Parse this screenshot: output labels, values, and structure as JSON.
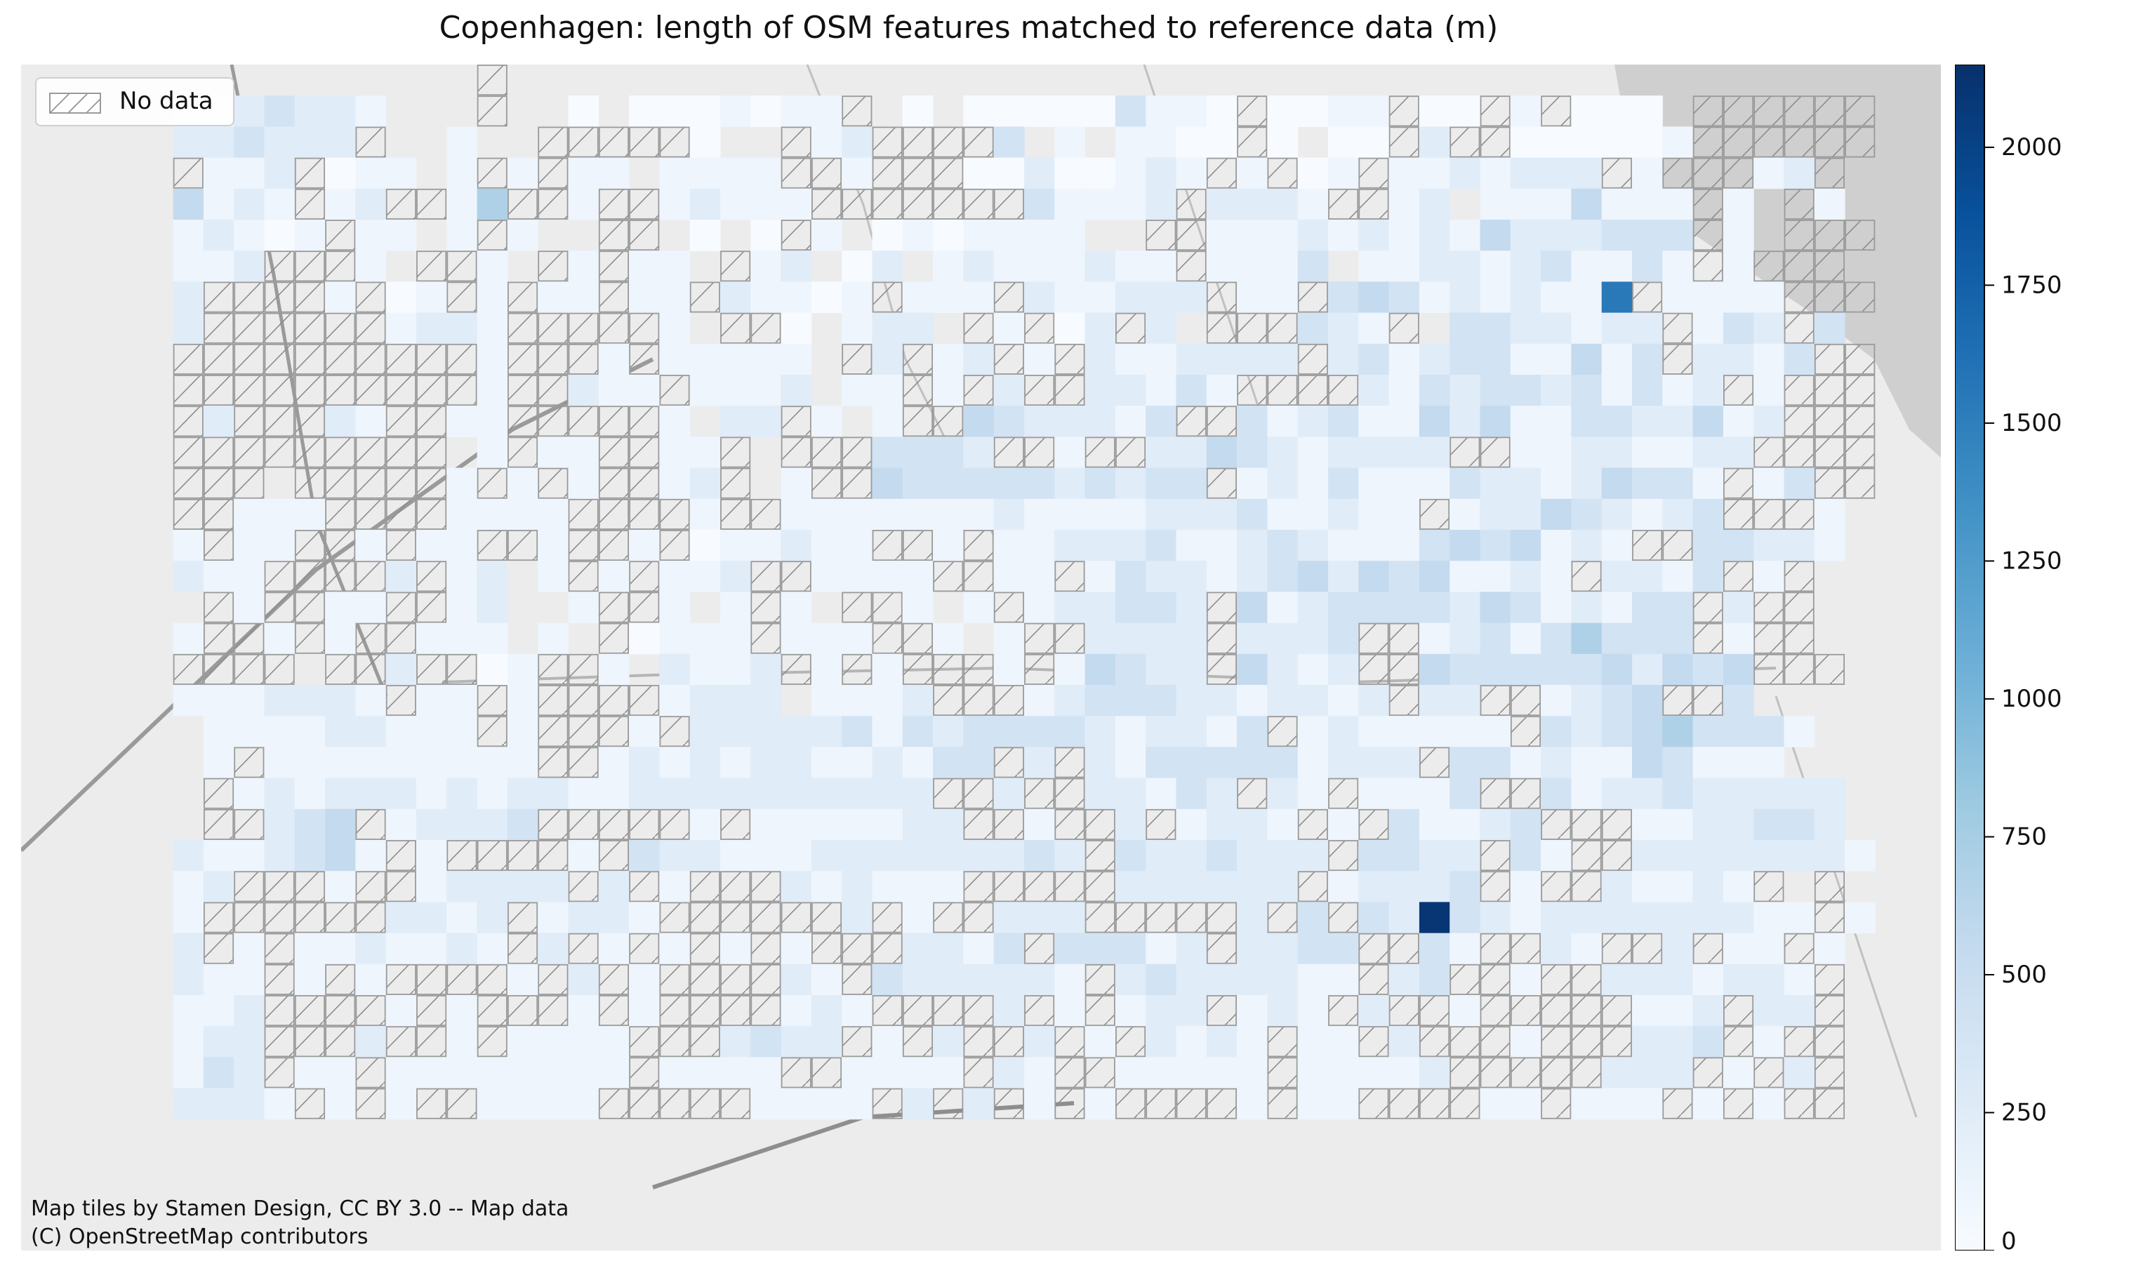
{
  "chart_data": {
    "type": "heatmap",
    "title": "Copenhagen: length of OSM features matched to reference data (m)",
    "value_unit": "m",
    "colormap": "Blues",
    "vmin": 0,
    "vmax": 2150,
    "colorbar_ticks": [
      0,
      250,
      500,
      750,
      1000,
      1250,
      1500,
      1750,
      2000
    ],
    "legend": {
      "label": "No data",
      "placement": "upper-left",
      "pattern": "hatch"
    },
    "attribution": [
      "Map tiles by Stamen Design, CC BY 3.0 -- Map data",
      "(C) OpenStreetMap contributors"
    ],
    "grid": {
      "n_cols": 58,
      "n_rows": 36,
      "legend_codes": {
        ".": "outside-grid",
        "X": "no-data",
        "0": 0,
        "1": 100,
        "2": 250,
        "3": 400,
        "4": 550,
        "5": 700,
        "6": 850,
        "7": 1000,
        "8": 1200,
        "9": 1350,
        "A": 1550,
        "B": 2100
      },
      "rows": [
        "............X.............................................",
        "..1123221...X..0.0001011X.0.000003110X0011X00X1X000.XXXXXX",
        "..223222X..1..XXXXX0..X12XXXX3.1.1100X0.00X2XX000001XXXXXX",
        "..X112X011.1X1X11.1111XX1XXX00200121X1X01X1121222X1XXX12X.",
        "..4121X12XX15XX1XX12111XXXXXXX31112X2221XX12.1114111X1.X1.",
        "..12101X11.1X1..XX.0.0X1.0101111..XX1112121214222333X1.XXX",
        "..112XXX1.XX1.X1X11.X12.02.12111211X1113.11221231131X1XXX.",
        "..2XXXX1X01X1X11X11X21101X111X211222X11X343121211AX1111XXX",
        "..2XXXXXX1221XXXXX1.XX0.122.X1X02X2.XXX321X.3322122X132X3.",
        "..XXXXXXXXXX1XXX1X11111.X2X12X1X2112222X23123311413X2213XX",
        "..XXXXXXXXXX1XX211X1112.11X1X2XX22131XXXX213233231312X1XXX",
        "..X2XXX21XX11XXXXX1.22X1.1XX4322213XX312311424113322412XXX",
        "..XXXXXXXXX.1X11XX11X.XXX3332XX1XX2243212222XX11221122XXXX",
        "..XXX.XXXXX1X1X1XX12X.1XX43333323233X1213111322124331X13XX",
        "..XX111XXXX1111XXXX1XX111111121111222311211X122432123XXX1.",
        "..1X11XX1X11XX1XX1X011211XX1X112223112321113434121XX33221.",
        "..211XXXX2X12.1X1X112XX1111XX11X1322123424341121X2213X1X..",
        "...X1XX11XX12..1XX1.1X1.XX1.1X122332X412333324312133X2XX..",
        "..1XX1X1XX111.1.X0111X111XX1.1XX2222X2223XX123135333X1XX..",
        "..XXXX.XX2XX01XX1.2112X1X1XXX1X14322X4212XX43333342434XXX.",
        "..1112221X11X1XXXX1222.1112XXX123332212212X22XX1234XX3....",
        "...111122111X1XXX1X2222231323333212213X1211111X323453331..",
        "...1X111111111XX1212122112133X2X21333331222X33121143111...",
        "...X12122212122112222222222XX2XX22132X21X1113XX3122322222.",
        "...XX234X12223XXXXX1X1111122XX1XX2X1221X1X31123XXX1122332.",
        "..2112341X1XXXX1X322111222222232X3223222X3322X31XX22222221.",
        "..12XXX1XX12222X2X1XXX212111XXXXX222222X12223X1XX21121X.X.",
        "..1XXXXXX2212X1221XXXXXX2X1XX222XXXXX2X3X32B321222222211X1",
        "..2X1X1121121X2X1X1X1X1XXX2213X33312X2233XX31XX21XX2X11X1.",
        "..211X1X1XXXX1X2X1XXXX21X3222221X23222211X23XX1XX2221221X.",
        "..112XXXX1X1XXX1X1XXXX121XXXX2X1X122X121X2XX1XXXXX112X22X.",
        "..122XXX2XX1X1111XXX2322X1X2XX2X1X2121X11X2XXX1XXX223X1XX.",
        "..132X11X11111111X1111XX1111X21XX11111X11112XXXXX222X1X2X.",
        "..2221X1X1XX1111XXXXX1111X2X2X1X1XXXX1X11XXXX11X111X1X1XX.",
        "..........................................................",
        ".........................................................."
      ]
    }
  }
}
